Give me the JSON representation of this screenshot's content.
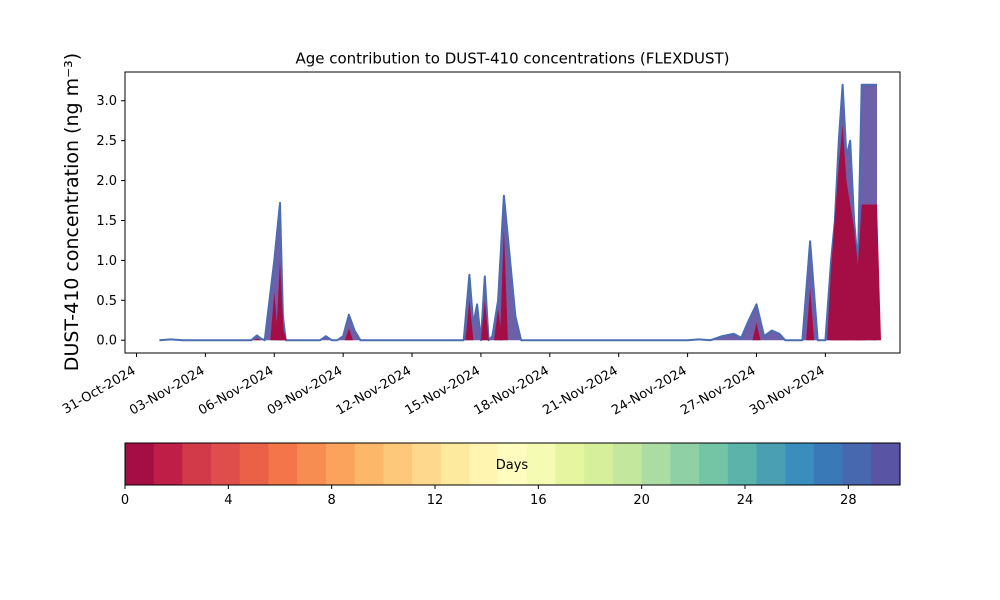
{
  "chart_data": {
    "type": "area",
    "title": "Age contribution to DUST-410 concentrations (FLEXDUST)",
    "ylabel": "DUST-410 concentration (ng m⁻³)",
    "xlabel": "",
    "ylim": [
      -0.16,
      3.36
    ],
    "xlim": [
      "2024-10-30T12:00",
      "2024-12-03T06:00"
    ],
    "yticks": [
      0.0,
      0.5,
      1.0,
      1.5,
      2.0,
      2.5,
      3.0
    ],
    "ytick_labels": [
      "0.0",
      "0.5",
      "1.0",
      "1.5",
      "2.0",
      "2.5",
      "3.0"
    ],
    "xticks": [
      "2024-10-31",
      "2024-11-03",
      "2024-11-06",
      "2024-11-09",
      "2024-11-12",
      "2024-11-15",
      "2024-11-18",
      "2024-11-21",
      "2024-11-24",
      "2024-11-27",
      "2024-11-30"
    ],
    "xtick_labels": [
      "31-Oct-2024",
      "03-Nov-2024",
      "06-Nov-2024",
      "09-Nov-2024",
      "12-Nov-2024",
      "15-Nov-2024",
      "18-Nov-2024",
      "21-Nov-2024",
      "24-Nov-2024",
      "27-Nov-2024",
      "30-Nov-2024"
    ],
    "grid": false,
    "series": [
      {
        "role": "total",
        "x": [
          "2024-11-01T00:00",
          "2024-11-01T12:00",
          "2024-11-02T00:00",
          "2024-11-02T12:00",
          "2024-11-03T00:00",
          "2024-11-04T00:00",
          "2024-11-05T00:00",
          "2024-11-05T06:00",
          "2024-11-05T10:00",
          "2024-11-05T14:00",
          "2024-11-06T00:00",
          "2024-11-06T06:00",
          "2024-11-06T09:00",
          "2024-11-06T12:00",
          "2024-11-06T18:00",
          "2024-11-07T12:00",
          "2024-11-08T00:00",
          "2024-11-08T06:00",
          "2024-11-08T12:00",
          "2024-11-08T18:00",
          "2024-11-09T00:00",
          "2024-11-09T06:00",
          "2024-11-09T12:00",
          "2024-11-09T18:00",
          "2024-11-10T12:00",
          "2024-11-11T00:00",
          "2024-11-11T12:00",
          "2024-11-12T12:00",
          "2024-11-13T12:00",
          "2024-11-14T00:00",
          "2024-11-14T06:00",
          "2024-11-14T12:00",
          "2024-11-14T16:00",
          "2024-11-14T20:00",
          "2024-11-15T00:00",
          "2024-11-15T04:00",
          "2024-11-15T08:00",
          "2024-11-15T12:00",
          "2024-11-15T18:00",
          "2024-11-16T00:00",
          "2024-11-16T12:00",
          "2024-11-16T18:00",
          "2024-11-17T00:00",
          "2024-11-17T12:00",
          "2024-11-18T12:00",
          "2024-11-20T00:00",
          "2024-11-22T00:00",
          "2024-11-24T00:00",
          "2024-11-24T12:00",
          "2024-11-25T00:00",
          "2024-11-25T12:00",
          "2024-11-26T00:00",
          "2024-11-26T08:00",
          "2024-11-26T16:00",
          "2024-11-27T00:00",
          "2024-11-27T08:00",
          "2024-11-27T16:00",
          "2024-11-28T00:00",
          "2024-11-28T06:00",
          "2024-11-28T12:00",
          "2024-11-29T00:00",
          "2024-11-29T08:00",
          "2024-11-29T16:00",
          "2024-11-30T00:00",
          "2024-11-30T06:00",
          "2024-11-30T10:00",
          "2024-11-30T14:00",
          "2024-11-30T18:00",
          "2024-11-30T22:00",
          "2024-12-01T02:00",
          "2024-12-01T06:00",
          "2024-12-01T10:00",
          "2024-12-01T14:00",
          "2024-12-01T18:00",
          "2024-12-02T00:00",
          "2024-12-02T06:00"
        ],
        "y": [
          0.0,
          0.01,
          0.0,
          0.0,
          0.0,
          0.0,
          0.0,
          0.06,
          0.02,
          0.0,
          1.0,
          1.72,
          0.3,
          0.0,
          0.0,
          0.0,
          0.0,
          0.05,
          0.0,
          0.0,
          0.05,
          0.32,
          0.12,
          0.0,
          0.0,
          0.0,
          0.0,
          0.0,
          0.0,
          0.0,
          0.0,
          0.82,
          0.2,
          0.45,
          0.0,
          0.8,
          0.0,
          0.05,
          0.5,
          1.81,
          0.3,
          0.0,
          0.0,
          0.0,
          0.0,
          0.0,
          0.0,
          0.0,
          0.01,
          0.0,
          0.05,
          0.08,
          0.03,
          0.25,
          0.45,
          0.05,
          0.12,
          0.08,
          0.0,
          0.0,
          0.0,
          1.24,
          0.0,
          0.0,
          1.0,
          1.5,
          2.5,
          3.2,
          2.3,
          2.5,
          1.5,
          0.95,
          3.2,
          3.2,
          3.2,
          3.2
        ]
      },
      {
        "role": "age 0-1 days",
        "x": [
          "2024-11-05T06:00",
          "2024-11-06T00:00",
          "2024-11-06T06:00",
          "2024-11-06T09:00",
          "2024-11-09T06:00",
          "2024-11-14T12:00",
          "2024-11-15T04:00",
          "2024-11-15T18:00",
          "2024-11-16T00:00",
          "2024-11-27T00:00",
          "2024-11-29T08:00",
          "2024-11-30T06:00",
          "2024-11-30T14:00",
          "2024-11-30T18:00",
          "2024-11-30T22:00",
          "2024-12-01T06:00",
          "2024-12-01T10:00",
          "2024-12-01T14:00",
          "2024-12-02T06:00"
        ],
        "y": [
          0.02,
          0.6,
          1.0,
          0.15,
          0.15,
          0.5,
          0.5,
          0.4,
          1.4,
          0.22,
          0.65,
          0.9,
          2.2,
          2.7,
          2.0,
          1.4,
          0.95,
          1.7,
          1.7
        ]
      }
    ],
    "colorbar": {
      "label": "Days",
      "range": [
        0,
        30
      ],
      "ticks": [
        0,
        4,
        8,
        12,
        16,
        20,
        24,
        28
      ],
      "tick_labels": [
        "0",
        "4",
        "8",
        "12",
        "16",
        "20",
        "24",
        "28"
      ],
      "colors": [
        "#a50e45",
        "#bf1f47",
        "#d23a4a",
        "#e04e4b",
        "#ea6148",
        "#f37549",
        "#f88d52",
        "#fba25d",
        "#fdb768",
        "#fec87a",
        "#fed88c",
        "#feea9e",
        "#fff5b0",
        "#fffcc0",
        "#f5fbb2",
        "#e6f5a0",
        "#d6ef9a",
        "#c3e79d",
        "#abdca2",
        "#8fd0a4",
        "#73c5a5",
        "#5cb3a9",
        "#4aa0b2",
        "#3a8ebd",
        "#3a79b8",
        "#4767af",
        "#5a54a4"
      ]
    }
  }
}
